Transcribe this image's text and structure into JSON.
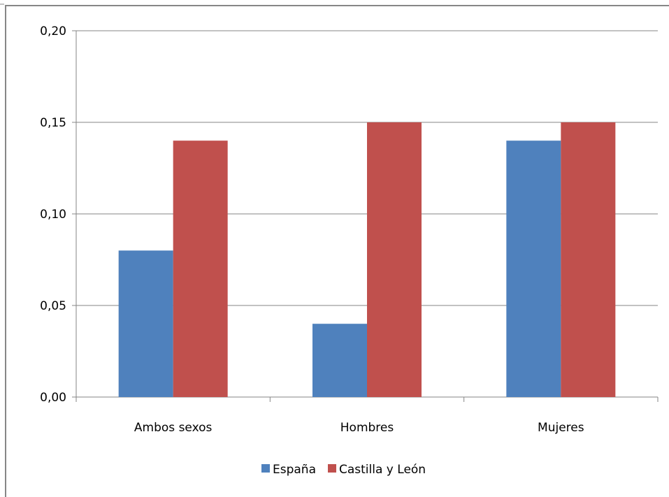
{
  "chart_data": {
    "type": "bar",
    "categories": [
      "Ambos sexos",
      "Hombres",
      "Mujeres"
    ],
    "series": [
      {
        "name": "España",
        "values": [
          0.08,
          0.04,
          0.14
        ],
        "color": "#4F81BD"
      },
      {
        "name": "Castilla y León",
        "values": [
          0.14,
          0.15,
          0.15
        ],
        "color": "#C0504D"
      }
    ],
    "yticks": [
      "0,00",
      "0,05",
      "0,10",
      "0,15",
      "0,20"
    ],
    "ytick_values": [
      0,
      0.05,
      0.1,
      0.15,
      0.2
    ],
    "ylim": [
      0,
      0.2
    ],
    "grid": true,
    "legend_position": "bottom",
    "title": "",
    "xlabel": "",
    "ylabel": ""
  }
}
